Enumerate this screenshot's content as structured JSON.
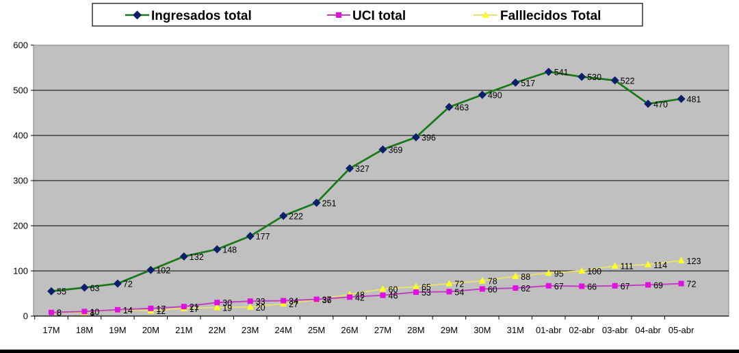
{
  "chart_data": {
    "type": "line",
    "categories": [
      "17M",
      "18M",
      "19M",
      "20M",
      "21M",
      "22M",
      "23M",
      "24M",
      "25M",
      "26M",
      "27M",
      "28M",
      "29M",
      "30M",
      "31M",
      "01-abr",
      "02-abr",
      "03-abr",
      "04-abr",
      "05-abr"
    ],
    "series": [
      {
        "name": "Ingresados total",
        "color": "#1a7a1a",
        "marker_color": "#0b1f6b",
        "marker": "diamond",
        "values": [
          55,
          63,
          72,
          102,
          132,
          148,
          177,
          222,
          251,
          327,
          369,
          396,
          463,
          490,
          517,
          541,
          530,
          522,
          470,
          481
        ]
      },
      {
        "name": "UCI total",
        "color": "#c040c0",
        "marker_color": "#e010e0",
        "marker": "square",
        "values": [
          8,
          10,
          14,
          17,
          21,
          30,
          33,
          34,
          37,
          42,
          46,
          53,
          54,
          60,
          62,
          67,
          66,
          67,
          69,
          72
        ]
      },
      {
        "name": "Falllecidos Total",
        "color": "#e8e070",
        "marker_color": "#ffff20",
        "marker": "triangle",
        "values": [
          8,
          8,
          14,
          12,
          17,
          19,
          20,
          27,
          36,
          48,
          60,
          65,
          72,
          78,
          88,
          95,
          100,
          111,
          114,
          123
        ]
      }
    ],
    "y_ticks": [
      "0",
      "100",
      "200",
      "300",
      "400",
      "500",
      "600"
    ],
    "ylim": [
      0,
      600
    ],
    "grid": true,
    "plot_background": "#c0c0c0",
    "legend_position": "top"
  }
}
